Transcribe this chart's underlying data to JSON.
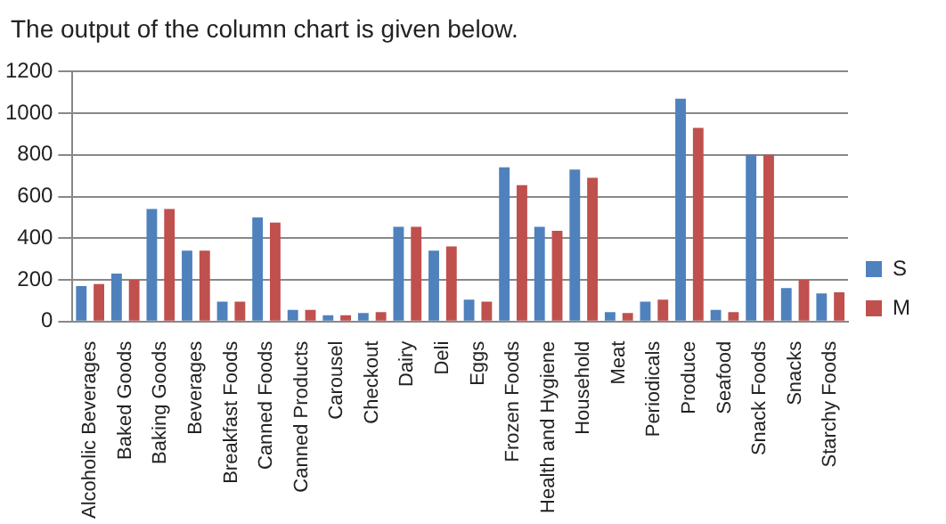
{
  "chart_data": {
    "type": "bar",
    "title": "The output of the column chart is given below.",
    "categories": [
      "Alcoholic Beverages",
      "Baked Goods",
      "Baking Goods",
      "Beverages",
      "Breakfast Foods",
      "Canned Foods",
      "Canned Products",
      "Carousel",
      "Checkout",
      "Dairy",
      "Deli",
      "Eggs",
      "Frozen Foods",
      "Health and Hygiene",
      "Household",
      "Meat",
      "Periodicals",
      "Produce",
      "Seafood",
      "Snack Foods",
      "Snacks",
      "Starchy Foods"
    ],
    "series": [
      {
        "name": "S",
        "color": "#4f81bd",
        "values": [
          170,
          230,
          540,
          340,
          95,
          500,
          55,
          30,
          40,
          455,
          340,
          105,
          740,
          455,
          730,
          45,
          95,
          1070,
          55,
          800,
          160,
          135
        ]
      },
      {
        "name": "M",
        "color": "#c0504d",
        "values": [
          180,
          200,
          540,
          340,
          95,
          475,
          55,
          30,
          45,
          455,
          360,
          95,
          655,
          435,
          690,
          40,
          105,
          930,
          45,
          800,
          200,
          140
        ]
      }
    ],
    "ylim": [
      0,
      1200
    ],
    "yticks": [
      0,
      200,
      400,
      600,
      800,
      1000,
      1200
    ],
    "grid": "y",
    "legend": "right"
  }
}
